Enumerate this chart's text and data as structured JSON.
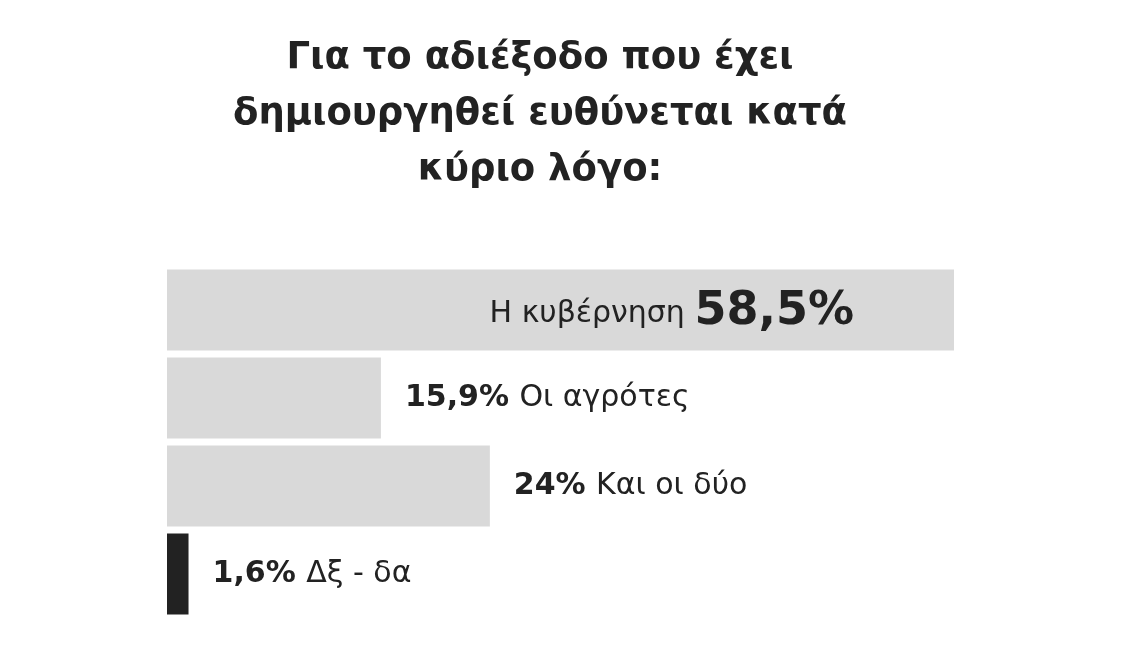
{
  "chart_data": {
    "type": "bar",
    "orientation": "horizontal",
    "title": "Για το αδιέξοδο που έχει δημιουργηθεί ευθύνεται κατά κύριο λόγο:",
    "categories": [
      "Η κυβέρνηση",
      "Οι αγρότες",
      "Και οι δύο",
      "Δξ - δα"
    ],
    "values": [
      58.5,
      15.9,
      24,
      1.6
    ],
    "value_labels": [
      "58,5%",
      "15,9%",
      "24%",
      "1,6%"
    ],
    "colors": [
      "#d9d9d9",
      "#d9d9d9",
      "#d9d9d9",
      "#222222"
    ],
    "legend": false,
    "tick_labels": false
  }
}
